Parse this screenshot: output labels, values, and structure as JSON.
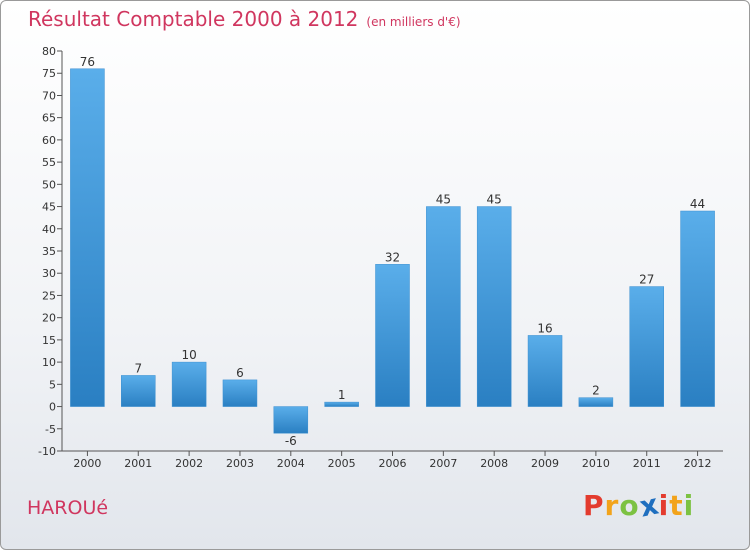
{
  "header": {
    "title": "Résultat Comptable 2000 à 2012",
    "subtitle": "(en milliers d'€)"
  },
  "footer": {
    "commune": "HAROUé"
  },
  "logo": {
    "letters": [
      "P",
      "r",
      "o",
      "x",
      "i",
      "t",
      "i"
    ],
    "colors": [
      "#e33b2e",
      "#f2a31b",
      "#7cc242",
      "#1f6fbf",
      "#e33b2e",
      "#f2a31b",
      "#7cc242"
    ]
  },
  "colors": {
    "bar_top": "#5aaeea",
    "bar_bottom": "#2a7fc2",
    "axis": "#555555",
    "title": "#d0365f"
  },
  "chart_data": {
    "type": "bar",
    "title": "Résultat Comptable 2000 à 2012",
    "xlabel": "",
    "ylabel": "",
    "categories": [
      "2000",
      "2001",
      "2002",
      "2003",
      "2004",
      "2005",
      "2006",
      "2007",
      "2008",
      "2009",
      "2010",
      "2011",
      "2012"
    ],
    "values": [
      76,
      7,
      10,
      6,
      -6,
      1,
      32,
      45,
      45,
      16,
      2,
      27,
      44
    ],
    "data_labels": [
      "76",
      "7",
      "10",
      "6",
      "-6",
      "1",
      "32",
      "45",
      "45",
      "16",
      "2",
      "27",
      "44"
    ],
    "ylim": [
      -10,
      80
    ],
    "yticks": [
      -10,
      -5,
      0,
      5,
      10,
      15,
      20,
      25,
      30,
      35,
      40,
      45,
      50,
      55,
      60,
      65,
      70,
      75,
      80
    ],
    "ytick_labels": [
      "-10",
      "-5",
      "0",
      "5",
      "10",
      "15",
      "20",
      "25",
      "30",
      "35",
      "40",
      "45",
      "50",
      "55",
      "60",
      "65",
      "70",
      "75",
      "80"
    ],
    "grid": false,
    "legend": "none"
  }
}
